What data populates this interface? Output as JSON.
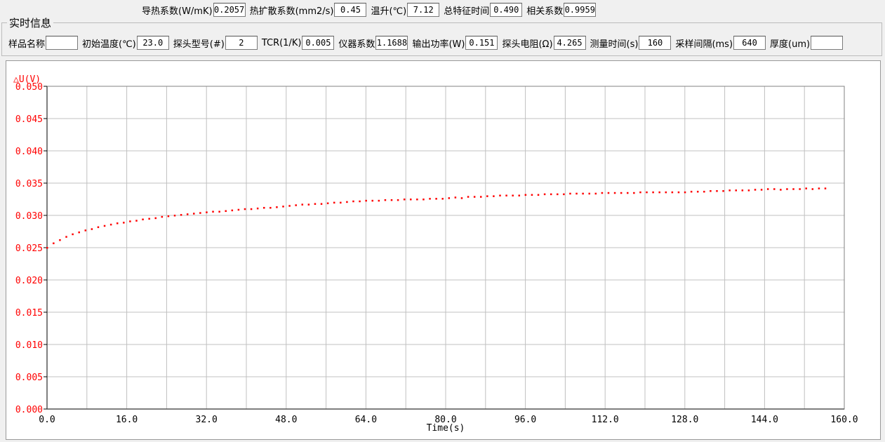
{
  "results": [
    {
      "label": "导热系数(W/mK)",
      "value": "0.2057"
    },
    {
      "label": "热扩散系数(mm2/s)",
      "value": "0.45"
    },
    {
      "label": "温升(℃)",
      "value": "7.12"
    },
    {
      "label": "总特征时间",
      "value": "0.490"
    },
    {
      "label": "相关系数",
      "value": "0.9959"
    }
  ],
  "group_title": "实时信息",
  "fields": [
    {
      "label": "样品名称",
      "value": ""
    },
    {
      "label": "初始温度(℃)",
      "value": "23.0"
    },
    {
      "label": "探头型号(#)",
      "value": "2"
    },
    {
      "label": "TCR(1/K)",
      "value": "0.005"
    },
    {
      "label": "仪器系数",
      "value": "1.1688"
    },
    {
      "label": "输出功率(W)",
      "value": "0.151"
    },
    {
      "label": "探头电阻(Ω)",
      "value": "4.265"
    },
    {
      "label": "测量时间(s)",
      "value": "160"
    },
    {
      "label": "采样间隔(ms)",
      "value": "640"
    },
    {
      "label": "厚度(um)",
      "value": ""
    }
  ],
  "chart_data": {
    "type": "scatter",
    "ylabel": "△U(V)",
    "xlabel": "Time(s)",
    "xlim": [
      0,
      160
    ],
    "ylim": [
      0,
      0.05
    ],
    "xticks": [
      "0.0",
      "16.0",
      "32.0",
      "48.0",
      "64.0",
      "80.0",
      "96.0",
      "112.0",
      "128.0",
      "144.0",
      "160.0"
    ],
    "yticks": [
      "0.000",
      "0.005",
      "0.010",
      "0.015",
      "0.020",
      "0.025",
      "0.030",
      "0.035",
      "0.040",
      "0.045",
      "0.050"
    ],
    "grid": true,
    "colors": {
      "points": "#ff0000",
      "axis_labels": "#ff0000",
      "grid": "#c0c0c0"
    },
    "x": [
      0,
      1.28,
      2.56,
      3.84,
      5.12,
      6.4,
      7.68,
      8.96,
      10.24,
      11.52,
      12.8,
      14.08,
      15.36,
      16.64,
      17.92,
      19.2,
      20.48,
      21.76,
      23.04,
      24.32,
      25.6,
      26.88,
      28.16,
      29.44,
      30.72,
      32,
      33.28,
      34.56,
      35.84,
      37.12,
      38.4,
      39.68,
      40.96,
      42.24,
      43.52,
      44.8,
      46.08,
      47.36,
      48.64,
      49.92,
      51.2,
      52.48,
      53.76,
      55.04,
      56.32,
      57.6,
      58.88,
      60.16,
      61.44,
      62.72,
      64,
      65.28,
      66.56,
      67.84,
      69.12,
      70.4,
      71.68,
      72.96,
      74.24,
      75.52,
      76.8,
      78.08,
      79.36,
      80.64,
      81.92,
      83.2,
      84.48,
      85.76,
      87.04,
      88.32,
      89.6,
      90.88,
      92.16,
      93.44,
      94.72,
      96,
      97.28,
      98.56,
      99.84,
      101.12,
      102.4,
      103.68,
      104.96,
      106.24,
      107.52,
      108.8,
      110.08,
      111.36,
      112.64,
      113.92,
      115.2,
      116.48,
      117.76,
      119.04,
      120.32,
      121.6,
      122.88,
      124.16,
      125.44,
      126.72,
      128,
      129.28,
      130.56,
      131.84,
      133.12,
      134.4,
      135.68,
      136.96,
      138.24,
      139.52,
      140.8,
      142.08,
      143.36,
      144.64,
      145.92,
      147.2,
      148.48,
      149.76,
      151.04,
      152.32,
      153.6,
      154.88,
      156.16
    ],
    "y": [
      0.025,
      0.0257,
      0.0262,
      0.0267,
      0.0271,
      0.0274,
      0.0277,
      0.0279,
      0.0282,
      0.0284,
      0.0286,
      0.0288,
      0.0289,
      0.0291,
      0.0292,
      0.0294,
      0.0295,
      0.0296,
      0.0298,
      0.0299,
      0.03,
      0.0301,
      0.0302,
      0.0303,
      0.0304,
      0.0305,
      0.0306,
      0.0306,
      0.0307,
      0.0308,
      0.0309,
      0.031,
      0.031,
      0.0311,
      0.0312,
      0.0312,
      0.0313,
      0.0314,
      0.0315,
      0.0316,
      0.0317,
      0.0317,
      0.0318,
      0.0318,
      0.0319,
      0.032,
      0.032,
      0.0321,
      0.0322,
      0.0322,
      0.0323,
      0.0323,
      0.0323,
      0.0324,
      0.0324,
      0.0324,
      0.0325,
      0.0325,
      0.0325,
      0.0325,
      0.0326,
      0.0326,
      0.0326,
      0.0327,
      0.0328,
      0.0327,
      0.0329,
      0.0329,
      0.0329,
      0.033,
      0.033,
      0.0331,
      0.0331,
      0.0331,
      0.0331,
      0.0332,
      0.0332,
      0.0332,
      0.0333,
      0.0333,
      0.0333,
      0.0333,
      0.0334,
      0.0334,
      0.0334,
      0.0334,
      0.0334,
      0.0335,
      0.0335,
      0.0335,
      0.0335,
      0.0335,
      0.0335,
      0.0336,
      0.0336,
      0.0336,
      0.0336,
      0.0336,
      0.0336,
      0.0336,
      0.0336,
      0.0337,
      0.0337,
      0.0337,
      0.0338,
      0.0338,
      0.0338,
      0.0339,
      0.0339,
      0.0339,
      0.0339,
      0.034,
      0.034,
      0.0341,
      0.0341,
      0.034,
      0.0341,
      0.0341,
      0.0341,
      0.0342,
      0.0341,
      0.0342,
      0.0342
    ]
  }
}
